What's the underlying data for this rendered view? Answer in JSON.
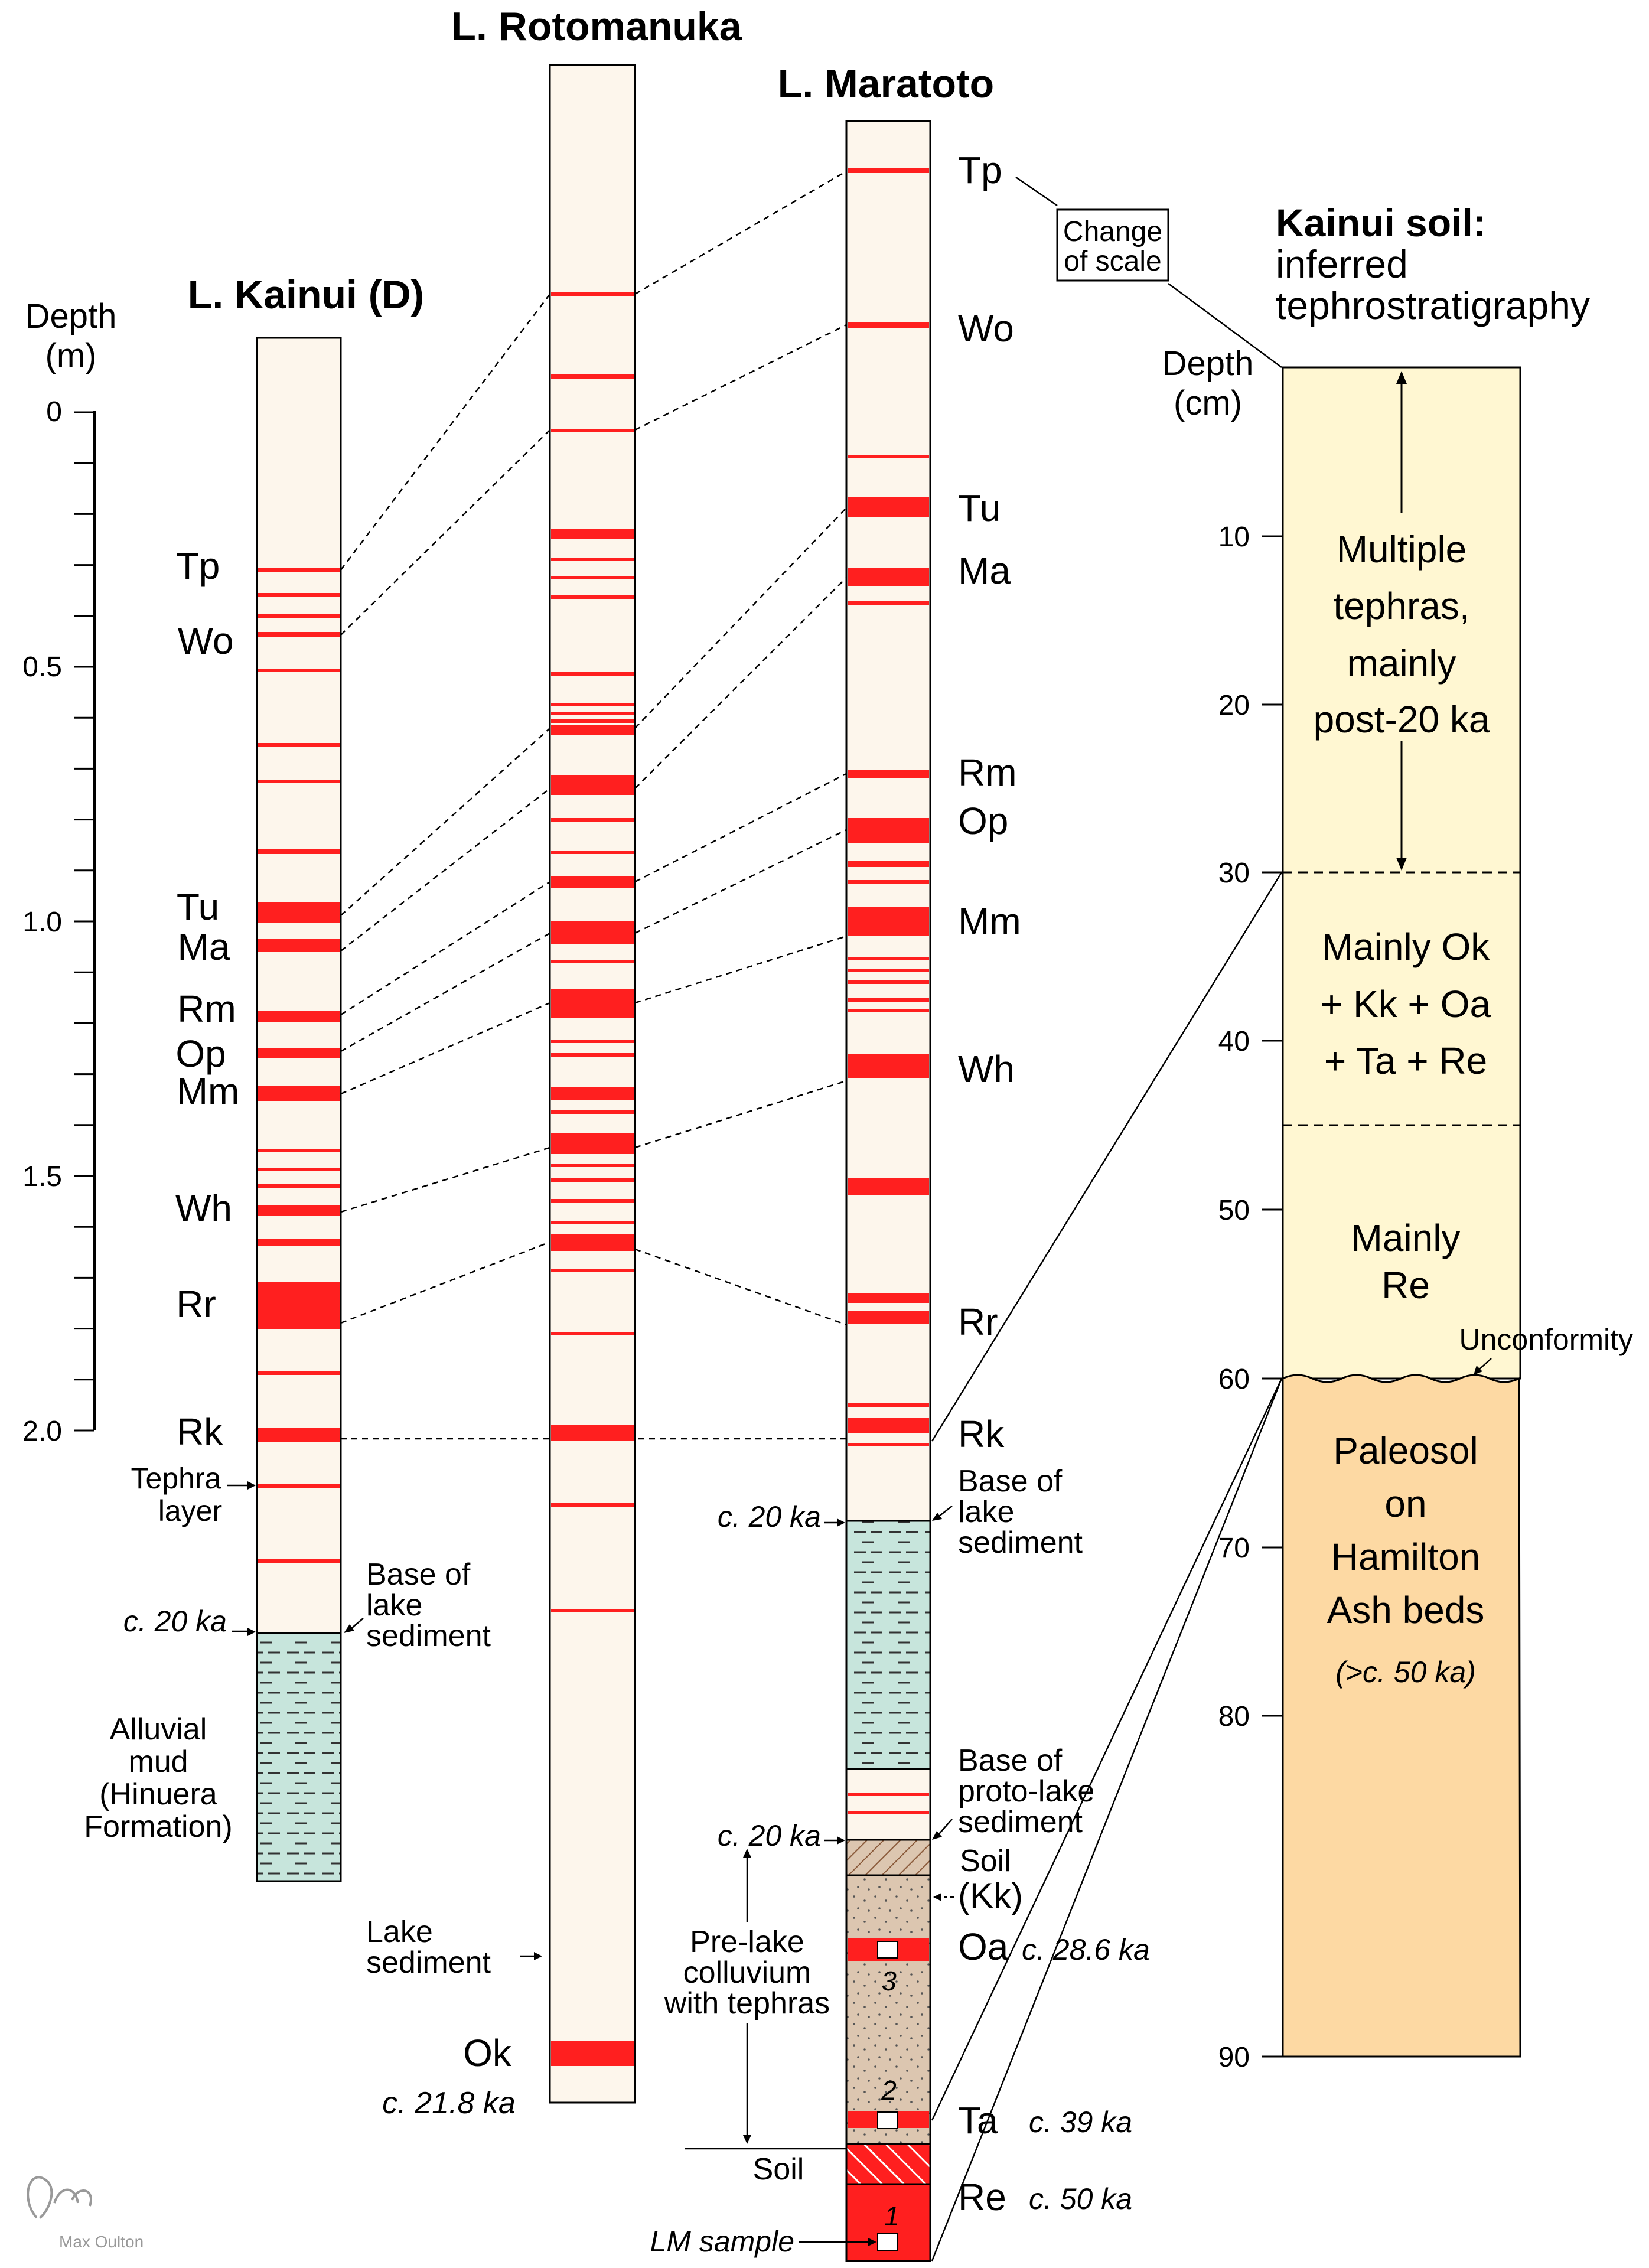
{
  "columns": {
    "kainui": {
      "title": "L. Kainui (D)",
      "depth_axis_title": "Depth",
      "depth_axis_unit": "(m)",
      "depth_ticks": [
        "0",
        "0.5",
        "1.0",
        "1.5",
        "2.0"
      ],
      "tephra_labels": [
        "Tp",
        "Wo",
        "Tu",
        "Ma",
        "Rm",
        "Op",
        "Mm",
        "Wh",
        "Rr",
        "Rk"
      ],
      "annotations": {
        "tephra_layer_1": "Tephra",
        "tephra_layer_2": "layer",
        "base_1": "Base of",
        "base_2": "lake",
        "base_3": "sediment",
        "age": "c. 20 ka",
        "mud_1": "Alluvial",
        "mud_2": "mud",
        "mud_3": "(Hinuera",
        "mud_4": "Formation)"
      }
    },
    "rotomanuka": {
      "title": "L. Rotomanuka",
      "annotations": {
        "lake_1": "Lake",
        "lake_2": "sediment",
        "ok_label": "Ok",
        "ok_age": "c. 21.8 ka"
      }
    },
    "maratoto": {
      "title": "L. Maratoto",
      "tephra_labels": [
        "Tp",
        "Wo",
        "Tu",
        "Ma",
        "Rm",
        "Op",
        "Mm",
        "Wh",
        "Rr",
        "Rk"
      ],
      "annotations": {
        "base_lake_age": "c. 20 ka",
        "base_lake_1": "Base of",
        "base_lake_2": "lake",
        "base_lake_3": "sediment",
        "base_proto_1": "Base of",
        "base_proto_2": "proto-lake",
        "base_proto_3": "sediment",
        "base_proto_age": "c. 20 ka",
        "soil_1": "Soil",
        "soil_2": "(Kk)",
        "oa_label": "Oa",
        "oa_age": "c. 28.6 ka",
        "colluvium_1": "Pre-lake",
        "colluvium_2": "colluvium",
        "colluvium_3": "with tephras",
        "ta_label": "Ta",
        "ta_age": "c. 39 ka",
        "re_label": "Re",
        "re_age": "c. 50 ka",
        "soil_bottom": "Soil",
        "lm_sample": "LM sample",
        "sample_3": "3",
        "sample_2": "2",
        "sample_1": "1"
      }
    },
    "kainui_soil": {
      "title_1": "Kainui soil:",
      "title_2": "inferred",
      "title_3": "tephrostratigraphy",
      "change_of_scale_1": "Change",
      "change_of_scale_2": "of scale",
      "depth_axis_title": "Depth",
      "depth_axis_unit": "(cm)",
      "depth_ticks": [
        "10",
        "20",
        "30",
        "40",
        "50",
        "60",
        "70",
        "80",
        "90"
      ],
      "units": {
        "upper_1": "Multiple",
        "upper_2": "tephras,",
        "upper_3": "mainly",
        "upper_4": "post-20 ka",
        "middle_1": "Mainly Ok",
        "middle_2": "+ Kk + Oa",
        "middle_3": "+ Ta + Re",
        "lower_1": "Mainly",
        "lower_2": "Re",
        "unconformity": "Unconformity",
        "paleosol_1": "Paleosol",
        "paleosol_2": "on",
        "paleosol_3": "Hamilton",
        "paleosol_4": "Ash beds",
        "paleosol_age": "(>c. 50 ka)"
      }
    }
  },
  "credit": "Max Oulton",
  "colors": {
    "column_fill": "#fdf6ec",
    "tephra_red": "#ff1f1f",
    "lake_mud": "#c7e5dc",
    "colluvium": "#dcc6b0",
    "soil_pale": "#fff7d2",
    "paleosol": "#fdd9a3"
  }
}
